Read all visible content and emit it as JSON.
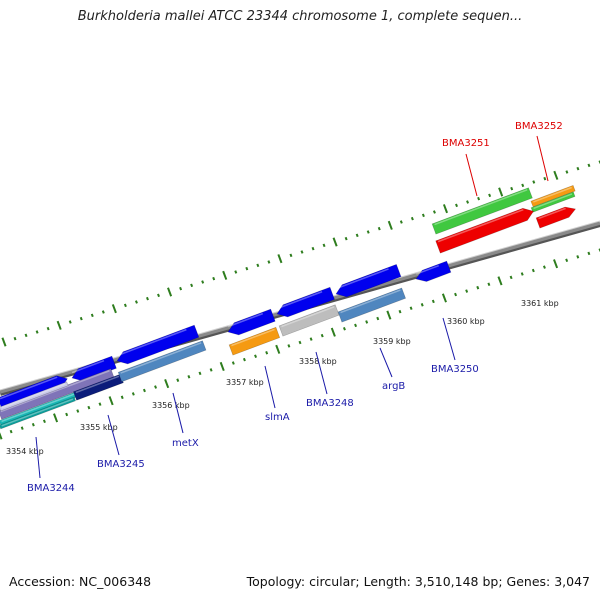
{
  "title": "Burkholderia mallei ATCC 23344 chromosome 1, complete sequen...",
  "footer": {
    "accession": "Accession: NC_006348",
    "summary": "Topology: circular; Length: 3,510,148 bp; Genes: 3,047"
  },
  "colors": {
    "backbone": "#8a8a8a",
    "tick": "#2e7d1e",
    "cds": "#0000ee",
    "label_blue": "#1a1aa8",
    "label_red": "#dd0000",
    "orange": "#f59a12",
    "gray": "#bdbdbd",
    "steelblue": "#4f86bf",
    "navy": "#0b1c7a",
    "teal": "#19b7b5",
    "lavender": "#7f74b8",
    "green": "#40c840",
    "red": "#ee0000"
  },
  "scale_labels": [
    {
      "kbp": 3354,
      "text": "3354 kbp"
    },
    {
      "kbp": 3355,
      "text": "3355 kbp"
    },
    {
      "kbp": 3356,
      "text": "3356 kbp"
    },
    {
      "kbp": 3357,
      "text": "3357 kbp"
    },
    {
      "kbp": 3358,
      "text": "3358 kbp"
    },
    {
      "kbp": 3359,
      "text": "3359 kbp"
    },
    {
      "kbp": 3360,
      "text": "3360 kbp"
    },
    {
      "kbp": 3361,
      "text": "3361 kbp"
    }
  ],
  "gene_labels": [
    {
      "name": "BMA3244",
      "color": "label_blue"
    },
    {
      "name": "BMA3245",
      "color": "label_blue"
    },
    {
      "name": "metX",
      "color": "label_blue"
    },
    {
      "name": "slmA",
      "color": "label_blue"
    },
    {
      "name": "BMA3248",
      "color": "label_blue"
    },
    {
      "name": "argB",
      "color": "label_blue"
    },
    {
      "name": "BMA3250",
      "color": "label_blue"
    },
    {
      "name": "BMA3251",
      "color": "label_red"
    },
    {
      "name": "BMA3252",
      "color": "label_red"
    }
  ]
}
